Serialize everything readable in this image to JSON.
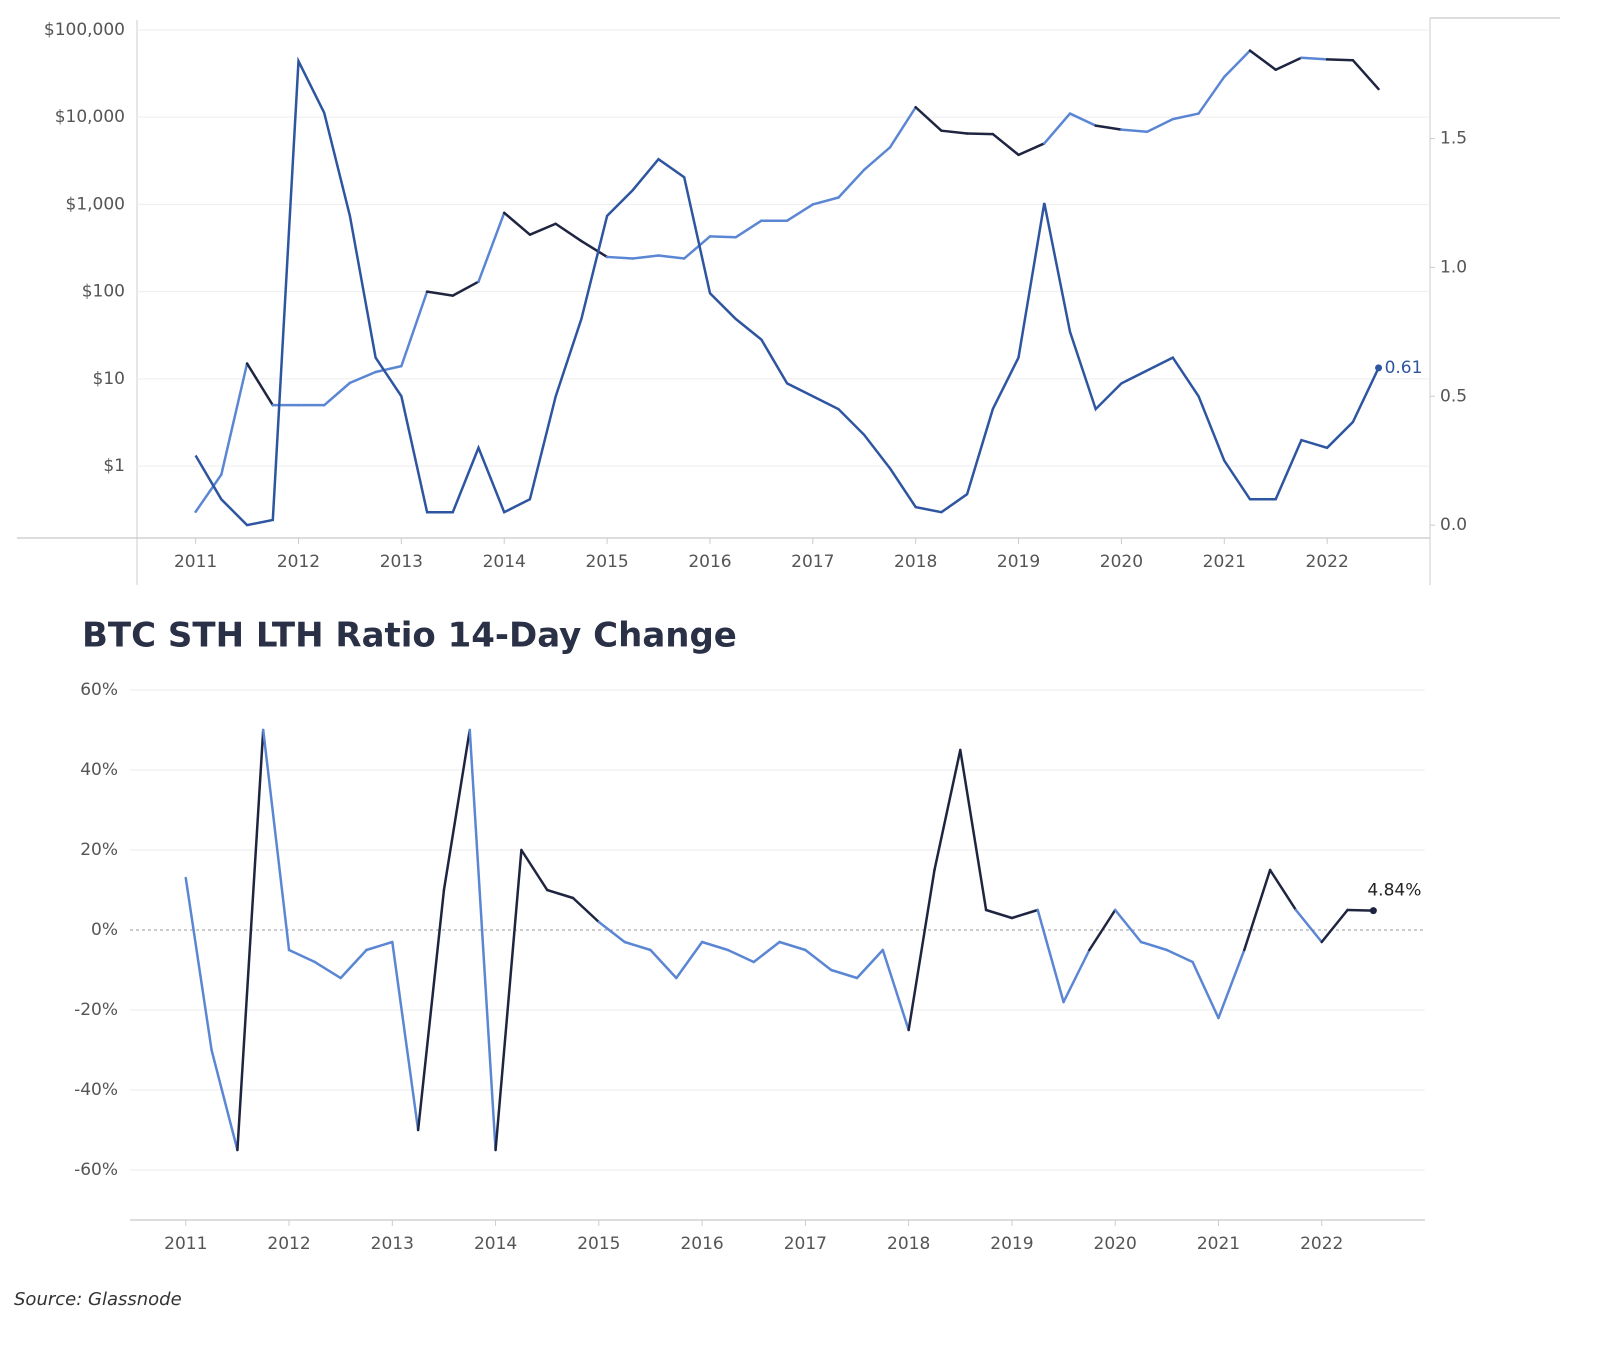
{
  "chart_data": [
    {
      "type": "line",
      "log_y": true,
      "grid": true,
      "x": [
        2011.0,
        2011.25,
        2011.5,
        2011.75,
        2012.0,
        2012.25,
        2012.5,
        2012.75,
        2013.0,
        2013.25,
        2013.5,
        2013.75,
        2014.0,
        2014.25,
        2014.5,
        2014.75,
        2015.0,
        2015.25,
        2015.5,
        2015.75,
        2016.0,
        2016.25,
        2016.5,
        2016.75,
        2017.0,
        2017.25,
        2017.5,
        2017.75,
        2018.0,
        2018.25,
        2018.5,
        2018.75,
        2019.0,
        2019.25,
        2019.5,
        2019.75,
        2020.0,
        2020.25,
        2020.5,
        2020.75,
        2021.0,
        2021.25,
        2021.5,
        2021.75,
        2022.0,
        2022.25,
        2022.5
      ],
      "xlim": [
        2010.43,
        2023.0
      ],
      "xticks": [
        2011,
        2012,
        2013,
        2014,
        2015,
        2016,
        2017,
        2018,
        2019,
        2020,
        2021,
        2022
      ],
      "ylim": [
        0.15,
        130000
      ],
      "yticks": [
        {
          "value": 1,
          "label": "$1"
        },
        {
          "value": 10,
          "label": "$10"
        },
        {
          "value": 100,
          "label": "$100"
        },
        {
          "value": 1000,
          "label": "$1,000"
        },
        {
          "value": 10000,
          "label": "$10,000"
        },
        {
          "value": 100000,
          "label": "$100,000"
        }
      ],
      "y2lim": [
        -0.05,
        1.96
      ],
      "y2ticks": [
        {
          "value": 0,
          "label": "0.0"
        },
        0.5,
        {
          "value": 1,
          "label": "1.0"
        },
        1.5
      ],
      "series": [
        {
          "axis": "y",
          "color_positive": "#1f2540",
          "color_negative": "#5b86d3",
          "values": [
            0.3,
            0.8,
            15,
            5,
            5,
            5,
            9,
            12,
            14,
            100,
            90,
            130,
            800,
            450,
            600,
            380,
            250,
            240,
            260,
            240,
            430,
            420,
            650,
            650,
            1000,
            1200,
            2500,
            4500,
            13000,
            7000,
            6500,
            6400,
            3700,
            5000,
            11000,
            8000,
            7200,
            6800,
            9500,
            11000,
            29000,
            58000,
            35000,
            48000,
            46000,
            45000,
            21000
          ]
        },
        {
          "axis": "y2",
          "color": "#2e55a0",
          "values": [
            0.27,
            0.1,
            0.0,
            0.02,
            1.8,
            1.6,
            1.2,
            0.65,
            0.5,
            0.05,
            0.05,
            0.3,
            0.05,
            0.1,
            0.5,
            0.8,
            1.2,
            1.3,
            1.42,
            1.35,
            0.9,
            0.8,
            0.72,
            0.55,
            0.5,
            0.45,
            0.35,
            0.22,
            0.07,
            0.05,
            0.12,
            0.45,
            0.65,
            1.25,
            0.75,
            0.45,
            0.55,
            0.6,
            0.65,
            0.5,
            0.25,
            0.1,
            0.1,
            0.33,
            0.3,
            0.4,
            0.61
          ]
        }
      ]
    },
    {
      "type": "line",
      "title": "BTC STH LTH Ratio 14-Day Change",
      "grid": true,
      "x": [
        2011.0,
        2011.25,
        2011.5,
        2011.75,
        2012.0,
        2012.25,
        2012.5,
        2012.75,
        2013.0,
        2013.25,
        2013.5,
        2013.75,
        2014.0,
        2014.25,
        2014.5,
        2014.75,
        2015.0,
        2015.25,
        2015.5,
        2015.75,
        2016.0,
        2016.25,
        2016.5,
        2016.75,
        2017.0,
        2017.25,
        2017.5,
        2017.75,
        2018.0,
        2018.25,
        2018.5,
        2018.75,
        2019.0,
        2019.25,
        2019.5,
        2019.75,
        2020.0,
        2020.25,
        2020.5,
        2020.75,
        2021.0,
        2021.25,
        2021.5,
        2021.75,
        2022.0,
        2022.25,
        2022.5
      ],
      "xlim": [
        2010.46,
        2023.0
      ],
      "xticks": [
        2011,
        2012,
        2013,
        2014,
        2015,
        2016,
        2017,
        2018,
        2019,
        2020,
        2021,
        2022
      ],
      "ylim": [
        -72.5,
        63
      ],
      "yticks": [
        {
          "value": -60,
          "label": "-60%"
        },
        {
          "value": -40,
          "label": "-40%"
        },
        {
          "value": -20,
          "label": "-20%"
        },
        {
          "value": 0,
          "label": "0%"
        },
        {
          "value": 20,
          "label": "20%"
        },
        {
          "value": 40,
          "label": "40%"
        },
        {
          "value": 60,
          "label": "60%"
        }
      ],
      "series": [
        {
          "color_positive": "#1f2540",
          "color_negative": "#5b86d3",
          "values": [
            13,
            -30,
            -55,
            50,
            -5,
            -8,
            -12,
            -5,
            -3,
            -50,
            10,
            50,
            -55,
            20,
            10,
            8,
            2,
            -3,
            -5,
            -12,
            -3,
            -5,
            -8,
            -3,
            -5,
            -10,
            -12,
            -5,
            -25,
            15,
            45,
            5,
            3,
            5,
            -18,
            -5,
            5,
            -3,
            -5,
            -8,
            -22,
            -5,
            15,
            5,
            -3,
            5,
            4.84
          ],
          "end_label": "4.84%"
        }
      ]
    }
  ],
  "source": "Source: Glassnode"
}
